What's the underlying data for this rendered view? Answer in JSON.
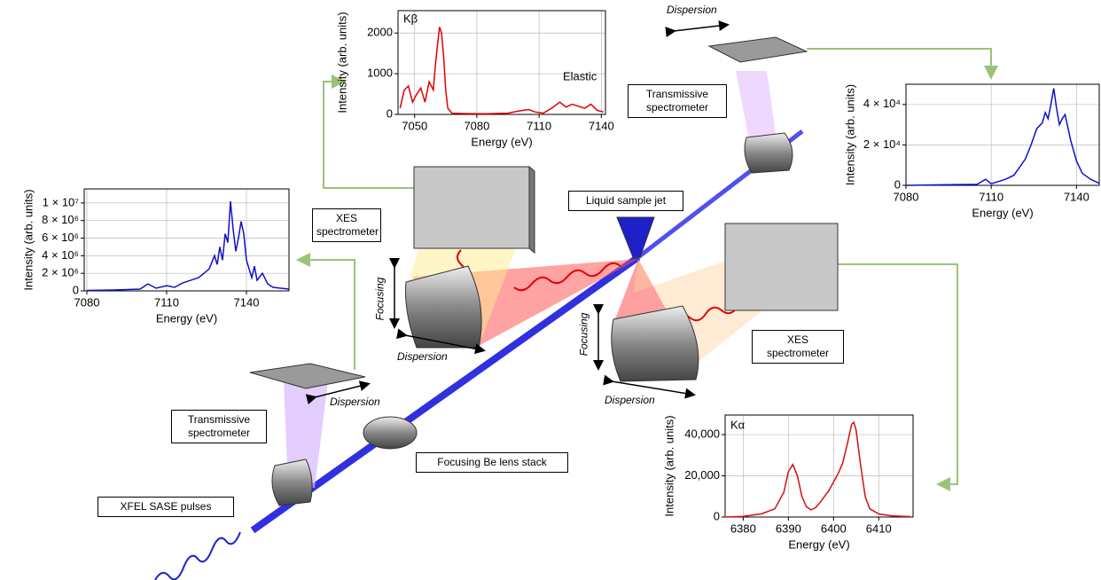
{
  "chart_data": [
    {
      "type": "line",
      "x_label": "Energy (eV)",
      "y_label": "Intensity (arb. units)",
      "annotations": [
        "Kβ",
        "Elastic"
      ],
      "color": "#e00000",
      "grid": true,
      "x": [
        7043,
        7045,
        7047,
        7049,
        7051,
        7053,
        7055,
        7057,
        7059,
        7060,
        7061,
        7062,
        7063,
        7064,
        7065,
        7066,
        7068,
        7075,
        7085,
        7095,
        7100,
        7105,
        7108,
        7112,
        7116,
        7120,
        7123,
        7126,
        7129,
        7132,
        7135,
        7138,
        7141
      ],
      "values": [
        150,
        600,
        700,
        300,
        500,
        650,
        300,
        800,
        600,
        1200,
        1700,
        2150,
        2000,
        1400,
        600,
        150,
        30,
        20,
        15,
        30,
        80,
        120,
        60,
        30,
        150,
        300,
        180,
        250,
        200,
        150,
        250,
        100,
        60
      ],
      "xlim": [
        7042,
        7142
      ],
      "ylim": [
        0,
        2550
      ],
      "xticks": [
        7050,
        7080,
        7110,
        7140
      ],
      "yticks": [
        0,
        1000,
        2000
      ]
    },
    {
      "type": "line",
      "x_label": "Energy (eV)",
      "y_label": "Intensity (arb. units)",
      "annotations": [],
      "color": "#1010c8",
      "grid": true,
      "x": [
        7080,
        7090,
        7100,
        7103,
        7106,
        7110,
        7113,
        7116,
        7119,
        7122,
        7124,
        7126,
        7128,
        7129,
        7130,
        7131,
        7132,
        7133,
        7134,
        7135,
        7136,
        7137,
        7138,
        7139,
        7140,
        7141,
        7142,
        7143,
        7144,
        7146,
        7148,
        7150,
        7153,
        7156
      ],
      "values": [
        50000,
        100000,
        200000,
        800000,
        300000,
        600000,
        400000,
        900000,
        1200000,
        1500000,
        2000000,
        2500000,
        4000000,
        3000000,
        5000000,
        3500000,
        6500000,
        5500000,
        10200000,
        7000000,
        4500000,
        6000000,
        7900000,
        6500000,
        3500000,
        2500000,
        1500000,
        2800000,
        1200000,
        2000000,
        800000,
        400000,
        300000,
        200000
      ],
      "xlim": [
        7079,
        7156
      ],
      "ylim": [
        0,
        11600000
      ],
      "xticks": [
        7080,
        7110,
        7140
      ],
      "yticks": [
        0,
        {
          "value": 2000000,
          "label": "2 × 10⁶"
        },
        {
          "value": 4000000,
          "label": "4 × 10⁶"
        },
        {
          "value": 6000000,
          "label": "6 × 10⁶"
        },
        {
          "value": 8000000,
          "label": "8 × 10⁶"
        },
        {
          "value": 10000000,
          "label": "1 × 10⁷"
        }
      ]
    },
    {
      "type": "line",
      "x_label": "Energy (eV)",
      "y_label": "Intensity (arb. units)",
      "annotations": [],
      "color": "#1010c8",
      "grid": true,
      "x": [
        7080,
        7095,
        7105,
        7108,
        7110,
        7115,
        7118,
        7120,
        7122,
        7124,
        7126,
        7128,
        7129,
        7130,
        7131,
        7132,
        7133,
        7134,
        7135,
        7136,
        7138,
        7140,
        7142,
        7145,
        7148
      ],
      "values": [
        0,
        300,
        500,
        3000,
        800,
        3000,
        5000,
        9000,
        13000,
        20000,
        28000,
        31000,
        36000,
        33000,
        40000,
        48000,
        38000,
        30000,
        33000,
        35000,
        22000,
        12000,
        6000,
        3000,
        1000
      ],
      "xlim": [
        7080,
        7148
      ],
      "ylim": [
        0,
        50000
      ],
      "xticks": [
        7080,
        7110,
        7140
      ],
      "yticks": [
        0,
        {
          "value": 20000,
          "label": "2 × 10⁴"
        },
        {
          "value": 40000,
          "label": "4 × 10⁴"
        }
      ]
    },
    {
      "type": "line",
      "x_label": "Energy (eV)",
      "y_label": "Intensity (arb. units)",
      "annotations": [
        "Kα"
      ],
      "color": "#d01010",
      "grid": true,
      "x": [
        6376,
        6380,
        6384,
        6387,
        6389,
        6390,
        6391,
        6392,
        6393,
        6394,
        6395,
        6396,
        6397,
        6398,
        6399,
        6400,
        6401,
        6402,
        6403,
        6404,
        6404.5,
        6405,
        6406,
        6407,
        6408,
        6410,
        6413,
        6417
      ],
      "values": [
        0,
        300,
        1500,
        4000,
        12000,
        22000,
        25500,
        20000,
        10000,
        5000,
        3500,
        4500,
        7000,
        10000,
        13000,
        17000,
        21000,
        26000,
        35000,
        45000,
        46000,
        42000,
        25000,
        10000,
        4000,
        1500,
        500,
        200
      ],
      "xlim": [
        6376,
        6417.6
      ],
      "ylim": [
        0,
        49500
      ],
      "xticks": [
        6380,
        6390,
        6400,
        6410
      ],
      "yticks": [
        0,
        {
          "value": 20000,
          "label": "20,000"
        },
        {
          "value": 40000,
          "label": "40,000"
        }
      ]
    }
  ],
  "diagram": {
    "labels": [
      "Dispersion",
      "Transmissive spectrometer",
      "Liquid sample jet",
      "XES spectrometer",
      "Focusing",
      "Dispersion",
      "Focusing",
      "XES spectrometer",
      "Dispersion",
      "Transmissive spectrometer",
      "Dispersion",
      "Focusing Be lens stack",
      "XFEL SASE pulses"
    ]
  }
}
